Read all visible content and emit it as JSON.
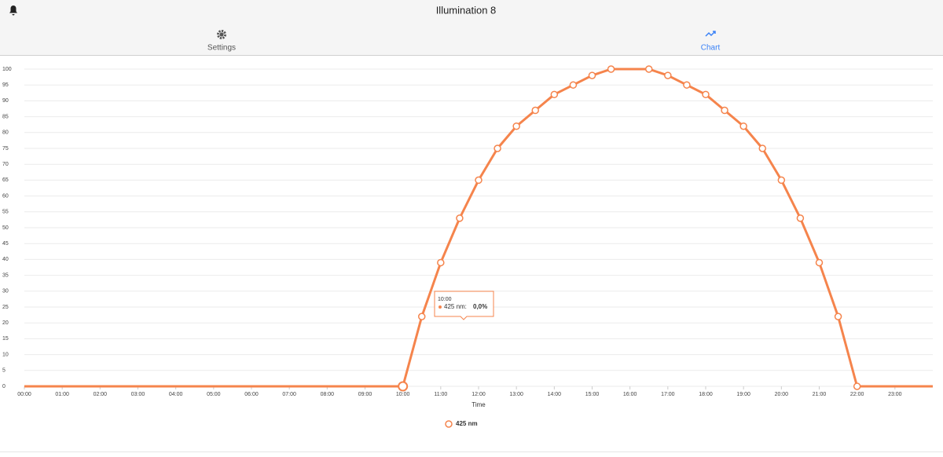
{
  "header": {
    "title": "Illumination 8"
  },
  "tabs": [
    {
      "label": "Settings"
    },
    {
      "label": "Chart"
    }
  ],
  "chart_data": {
    "type": "line",
    "x_label": "Time",
    "x": [
      0,
      10,
      10.5,
      11,
      11.5,
      12,
      12.5,
      13,
      13.5,
      14,
      14.5,
      15,
      15.5,
      16.5,
      17,
      17.5,
      18,
      18.5,
      19,
      19.5,
      20,
      20.5,
      21,
      21.5,
      22,
      24
    ],
    "series": [
      {
        "name": "425 nm",
        "color": "#f5844c",
        "values": [
          0,
          0,
          22,
          39,
          53,
          65,
          75,
          82,
          87,
          92,
          95,
          98,
          100,
          100,
          98,
          95,
          92,
          87,
          82,
          75,
          65,
          53,
          39,
          22,
          0,
          0
        ]
      }
    ],
    "xlim": [
      0,
      24
    ],
    "xticks": [
      {
        "value": 0,
        "label": "00:00"
      },
      {
        "value": 1,
        "label": "01:00"
      },
      {
        "value": 2,
        "label": "02:00"
      },
      {
        "value": 3,
        "label": "03:00"
      },
      {
        "value": 4,
        "label": "04:00"
      },
      {
        "value": 5,
        "label": "05:00"
      },
      {
        "value": 6,
        "label": "06:00"
      },
      {
        "value": 7,
        "label": "07:00"
      },
      {
        "value": 8,
        "label": "08:00"
      },
      {
        "value": 9,
        "label": "09:00"
      },
      {
        "value": 10,
        "label": "10:00"
      },
      {
        "value": 11,
        "label": "11:00"
      },
      {
        "value": 12,
        "label": "12:00"
      },
      {
        "value": 13,
        "label": "13:00"
      },
      {
        "value": 14,
        "label": "14:00"
      },
      {
        "value": 15,
        "label": "15:00"
      },
      {
        "value": 16,
        "label": "16:00"
      },
      {
        "value": 17,
        "label": "17:00"
      },
      {
        "value": 18,
        "label": "18:00"
      },
      {
        "value": 19,
        "label": "19:00"
      },
      {
        "value": 20,
        "label": "20:00"
      },
      {
        "value": 21,
        "label": "21:00"
      },
      {
        "value": 22,
        "label": "22:00"
      },
      {
        "value": 23,
        "label": "23:00"
      }
    ],
    "ylim": [
      0,
      100
    ],
    "yticks": [
      0,
      5,
      10,
      15,
      20,
      25,
      30,
      35,
      40,
      45,
      50,
      55,
      60,
      65,
      70,
      75,
      80,
      85,
      90,
      95,
      100
    ],
    "grid": true,
    "legend": "bottom"
  },
  "tooltip": {
    "time": "10:00",
    "label": "425 nm:",
    "value": "0,0%"
  }
}
